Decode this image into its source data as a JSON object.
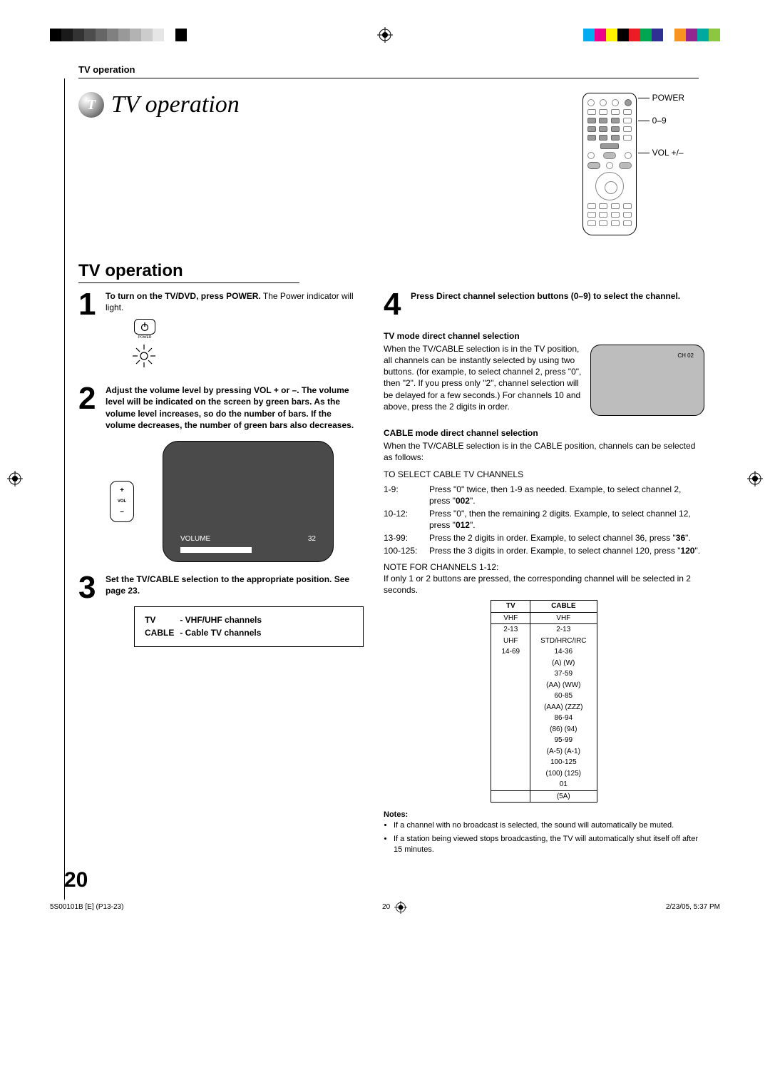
{
  "header": "TV operation",
  "sphere_letter": "T",
  "title": "TV operation",
  "remote_labels": {
    "power": "POWER",
    "digits": "0–9",
    "vol": "VOL +/–"
  },
  "section_heading": "TV operation",
  "steps": {
    "s1": {
      "num": "1",
      "bold": "To turn on the TV/DVD, press POWER.",
      "text": "The Power indicator will light.",
      "power_label": "POWER"
    },
    "s2": {
      "num": "2",
      "bold": "Adjust the volume level by pressing VOL + or –. The volume level will be indicated on the screen by green bars. As the volume level increases, so do the number of bars. If the volume decreases, the number of green bars also decreases.",
      "vol_plus": "+",
      "vol_label": "VOL",
      "vol_minus": "–",
      "screen_volume_label": "VOLUME",
      "screen_volume_value": "32"
    },
    "s3": {
      "num": "3",
      "bold": "Set the TV/CABLE selection to the appropriate position. See page 23.",
      "box_tv_k": "TV",
      "box_tv_v": "- VHF/UHF channels",
      "box_cable_k": "CABLE",
      "box_cable_v": "- Cable TV channels"
    },
    "s4": {
      "num": "4",
      "bold": "Press Direct channel selection buttons (0–9) to select the channel."
    }
  },
  "right": {
    "h1": "TV mode direct channel selection",
    "p1a": "When the TV/CABLE selection is in the TV position, all channels can be instantly selected by using two buttons. (for example, to select channel 2, press \"0\", then \"2\". If you press only \"2\", channel selection will be delayed for a few seconds.) For channels 10 and above, press the 2 digits in order.",
    "mini_ch": "CH 02",
    "h2": "CABLE mode direct channel selection",
    "p2": "When the TV/CABLE selection is in the CABLE position, channels can be selected as follows:",
    "p3": "TO SELECT CABLE TV CHANNELS",
    "rows": [
      {
        "k": "1-9:",
        "v": "Press \"0\" twice, then 1-9 as needed. Example, to select channel 2, press \"002\"."
      },
      {
        "k": "10-12:",
        "v": "Press \"0\", then the remaining 2 digits. Example, to select channel 12, press \"012\"."
      },
      {
        "k": "13-99:",
        "v": "Press the 2 digits in order. Example, to select channel 36, press \"36\"."
      },
      {
        "k": "100-125:",
        "v": "Press the 3 digits in order. Example, to select channel 120, press \"120\"."
      }
    ],
    "note_head": "NOTE FOR CHANNELS 1-12:",
    "note_body": "If only 1 or 2 buttons are pressed, the corresponding channel will be selected in 2 seconds.",
    "table": {
      "th_tv": "TV",
      "th_cable": "CABLE",
      "tv_cells": [
        "VHF",
        "2-13",
        "UHF",
        "14-69"
      ],
      "cable_cells": [
        "VHF",
        "2-13",
        "STD/HRC/IRC",
        "14-36",
        "(A) (W)",
        "37-59",
        "(AA) (WW)",
        "60-85",
        "(AAA) (ZZZ)",
        "86-94",
        "(86) (94)",
        "95-99",
        "(A-5) (A-1)",
        "100-125",
        "(100) (125)",
        "01",
        "(5A)"
      ]
    },
    "notes_head": "Notes:",
    "notes": [
      "If a channel with no broadcast is selected, the sound will automatically be muted.",
      "If a station being viewed stops broadcasting, the TV will automatically shut itself off after 15 minutes."
    ]
  },
  "page_number": "20",
  "footer": {
    "left": "5S00101B [E] (P13-23)",
    "mid": "20",
    "right": "2/23/05, 5:37 PM"
  },
  "colors": {
    "bw": [
      "#000000",
      "#1a1a1a",
      "#333333",
      "#4d4d4d",
      "#666666",
      "#808080",
      "#999999",
      "#b3b3b3",
      "#cccccc",
      "#e6e6e6",
      "#ffffff",
      "#000000"
    ],
    "cmyk": [
      "#00aeef",
      "#ec008c",
      "#fff200",
      "#000000",
      "#ed1c24",
      "#00a651",
      "#2e3192",
      "#ffffff",
      "#f7941d",
      "#92278f",
      "#00a99d",
      "#8dc63f"
    ]
  }
}
